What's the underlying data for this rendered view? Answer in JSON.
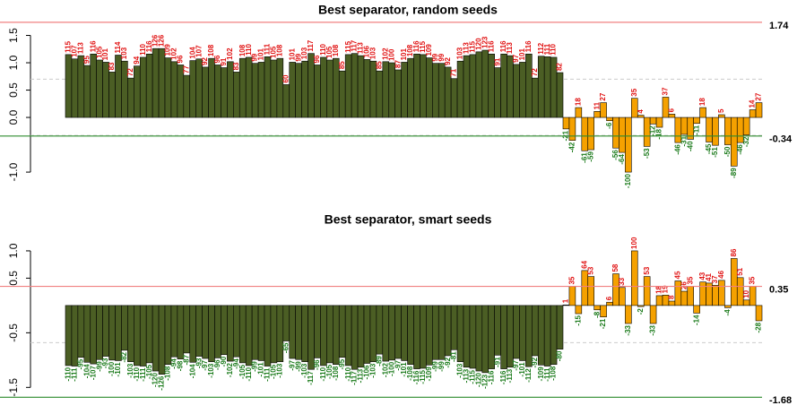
{
  "chart_data": [
    {
      "type": "bar",
      "title": "Best separator, random seeds",
      "ylim": [
        -1.13,
        1.82
      ],
      "yticks": [
        {
          "value": -1,
          "label": "-1.0"
        },
        {
          "value": 0,
          "label": "0.0"
        },
        {
          "value": 0.5,
          "label": "0.5"
        },
        {
          "value": 1,
          "label": "1.0"
        },
        {
          "value": 1.5,
          "label": "1.5"
        }
      ],
      "series": [
        {
          "color": "#4b5e24",
          "values": [
            1.15,
            1.07,
            1.13,
            0.95,
            1.16,
            1.05,
            1.01,
            0.83,
            1.14,
            1.03,
            0.72,
            0.94,
            1.1,
            1.16,
            1.26,
            1.26,
            1.09,
            1.02,
            0.96,
            0.77,
            1.04,
            1.07,
            0.92,
            1.08,
            0.96,
            0.91,
            1.02,
            0.83,
            1.08,
            1.1,
            0.99,
            1.01,
            1.11,
            1.05,
            1.08,
            0.6,
            1.01,
            0.99,
            1.03,
            1.17,
            0.96,
            1.1,
            1.05,
            1.08,
            0.85,
            1.15,
            1.17,
            1.13,
            1.06,
            1.03,
            0.85,
            1.02,
            1,
            0.87,
            1.01,
            1.08,
            1.16,
            1.15,
            1.09,
            0.99,
            0.99,
            0.92,
            0.71,
            1.03,
            1.13,
            1.15,
            1.2,
            1.23,
            1.16,
            0.91,
            1.16,
            1.13,
            0.97,
            1.01,
            1.16,
            0.72,
            1.12,
            1.11,
            1.1,
            0.82
          ],
          "value_labels": [
            "115",
            "107",
            "113",
            "95",
            "116",
            "105",
            "101",
            "83",
            "114",
            "103",
            "72",
            "94",
            "110",
            "116",
            "126",
            "126",
            "109",
            "102",
            "96",
            "77",
            "104",
            "107",
            "92",
            "108",
            "96",
            "91",
            "102",
            "83",
            "108",
            "110",
            "99",
            "101",
            "111",
            "105",
            "108",
            "60",
            "101",
            "99",
            "103",
            "117",
            "96",
            "110",
            "105",
            "108",
            "85",
            "115",
            "117",
            "113",
            "106",
            "103",
            "85",
            "102",
            "100",
            "87",
            "101",
            "108",
            "116",
            "115",
            "109",
            "99",
            "99",
            "92",
            "71",
            "103",
            "113",
            "115",
            "120",
            "123",
            "116",
            "91",
            "116",
            "113",
            "97",
            "101",
            "116",
            "72",
            "112",
            "111",
            "110",
            "82"
          ]
        },
        {
          "color": "#f5a100",
          "values": [
            -0.21,
            -0.42,
            0.18,
            -0.61,
            -0.59,
            0.11,
            0.27,
            -0.06,
            -0.56,
            -0.64,
            -1,
            0.35,
            0.04,
            -0.53,
            -0.12,
            -0.18,
            0.37,
            0.06,
            -0.46,
            -0.31,
            -0.4,
            -0.11,
            0.18,
            -0.45,
            -0.51,
            0.05,
            -0.5,
            -0.89,
            -0.46,
            -0.32,
            0.14,
            0.27
          ],
          "value_labels": [
            "-21",
            "-42",
            "18",
            "-61",
            "-59",
            "11",
            "27",
            "-6",
            "-56",
            "-64",
            "-100",
            "35",
            "4",
            "-53",
            "-12",
            "-18",
            "37",
            "6",
            "-46",
            "-31",
            "-40",
            "-11",
            "18",
            "-45",
            "-51",
            "5",
            "-50",
            "-89",
            "-46",
            "-32",
            "14",
            "27"
          ]
        }
      ],
      "reference_lines": [
        {
          "value": 1.74,
          "color": "#f08080"
        },
        {
          "value": -0.34,
          "color": "#2e8b2e"
        }
      ],
      "dashed_lines": [
        0.7,
        -0.33
      ]
    },
    {
      "type": "bar",
      "title": "Best separator, smart seeds",
      "ylim": [
        -1.79,
        1.36
      ],
      "yticks": [
        {
          "value": -1.5,
          "label": "-1.5"
        },
        {
          "value": -0.5,
          "label": "-0.5"
        },
        {
          "value": 0.5,
          "label": "0.5"
        },
        {
          "value": 1,
          "label": "1.0"
        }
      ],
      "series": [
        {
          "color": "#4b5e24",
          "values": [
            -1.1,
            -1.11,
            -0.95,
            -1.04,
            -1.07,
            -0.99,
            -0.93,
            -1,
            -1.01,
            -0.82,
            -1.03,
            -1.1,
            -1.11,
            -1.05,
            -1.2,
            -1.26,
            -1.08,
            -0.94,
            -0.98,
            -0.87,
            -1.04,
            -0.93,
            -0.97,
            -1.03,
            -0.96,
            -0.9,
            -1.02,
            -0.94,
            -1.05,
            -1.1,
            -0.99,
            -1.01,
            -1.11,
            -1.05,
            -1.03,
            -0.65,
            -0.97,
            -0.99,
            -1.03,
            -1.17,
            -0.96,
            -1.1,
            -1.05,
            -1.08,
            -0.95,
            -1.1,
            -1.17,
            -1.13,
            -1.06,
            -1.03,
            -0.89,
            -1.02,
            -1,
            -0.97,
            -1.01,
            -1.08,
            -1.16,
            -1.15,
            -1.09,
            -0.99,
            -0.99,
            -0.92,
            -0.81,
            -1.03,
            -1.13,
            -1.15,
            -1.2,
            -1.23,
            -1.16,
            -0.91,
            -1.16,
            -1.13,
            -0.97,
            -1.01,
            -1.12,
            -0.92,
            -1.09,
            -1.11,
            -1.08,
            -0.8
          ],
          "value_labels": [
            "-110",
            "-111",
            "-95",
            "-104",
            "-107",
            "-99",
            "-93",
            "-100",
            "-101",
            "-82",
            "-103",
            "-110",
            "-111",
            "-105",
            "-120",
            "-126",
            "-108",
            "-94",
            "-98",
            "-87",
            "-104",
            "-93",
            "-97",
            "-103",
            "-96",
            "-90",
            "-102",
            "-94",
            "-105",
            "-110",
            "-99",
            "-101",
            "-111",
            "-105",
            "-103",
            "-65",
            "-97",
            "-99",
            "-103",
            "-117",
            "-96",
            "-110",
            "-105",
            "-108",
            "-95",
            "-110",
            "-117",
            "-113",
            "-106",
            "-103",
            "-89",
            "-102",
            "-100",
            "-97",
            "-101",
            "-108",
            "-116",
            "-115",
            "-109",
            "-99",
            "-99",
            "-92",
            "-81",
            "-103",
            "-113",
            "-115",
            "-120",
            "-123",
            "-116",
            "-91",
            "-116",
            "-113",
            "-97",
            "-101",
            "-112",
            "-92",
            "-109",
            "-111",
            "-108",
            "-80"
          ]
        },
        {
          "color": "#f5a100",
          "values": [
            0.01,
            0.35,
            -0.15,
            0.64,
            0.53,
            -0.08,
            -0.21,
            0.06,
            0.58,
            0.33,
            -0.33,
            1,
            -0.02,
            0.53,
            -0.33,
            0.18,
            0.19,
            0.08,
            0.45,
            0.26,
            0.35,
            -0.14,
            0.43,
            0.41,
            0.37,
            0.46,
            -0.04,
            0.86,
            0.51,
            0.1,
            0.35,
            -0.28
          ],
          "value_labels": [
            "1",
            "35",
            "-15",
            "64",
            "53",
            "-8",
            "-21",
            "6",
            "58",
            "33",
            "-33",
            "100",
            "-2",
            "53",
            "-33",
            "18",
            "19",
            "8",
            "45",
            "26",
            "35",
            "-14",
            "43",
            "41",
            "37",
            "46",
            "-4",
            "86",
            "51",
            "10",
            "35",
            "-28"
          ]
        }
      ],
      "reference_lines": [
        {
          "value": 0.35,
          "color": "#f08080"
        },
        {
          "value": -1.68,
          "color": "#2e8b2e"
        }
      ],
      "dashed_lines": [
        -0.68
      ]
    }
  ]
}
